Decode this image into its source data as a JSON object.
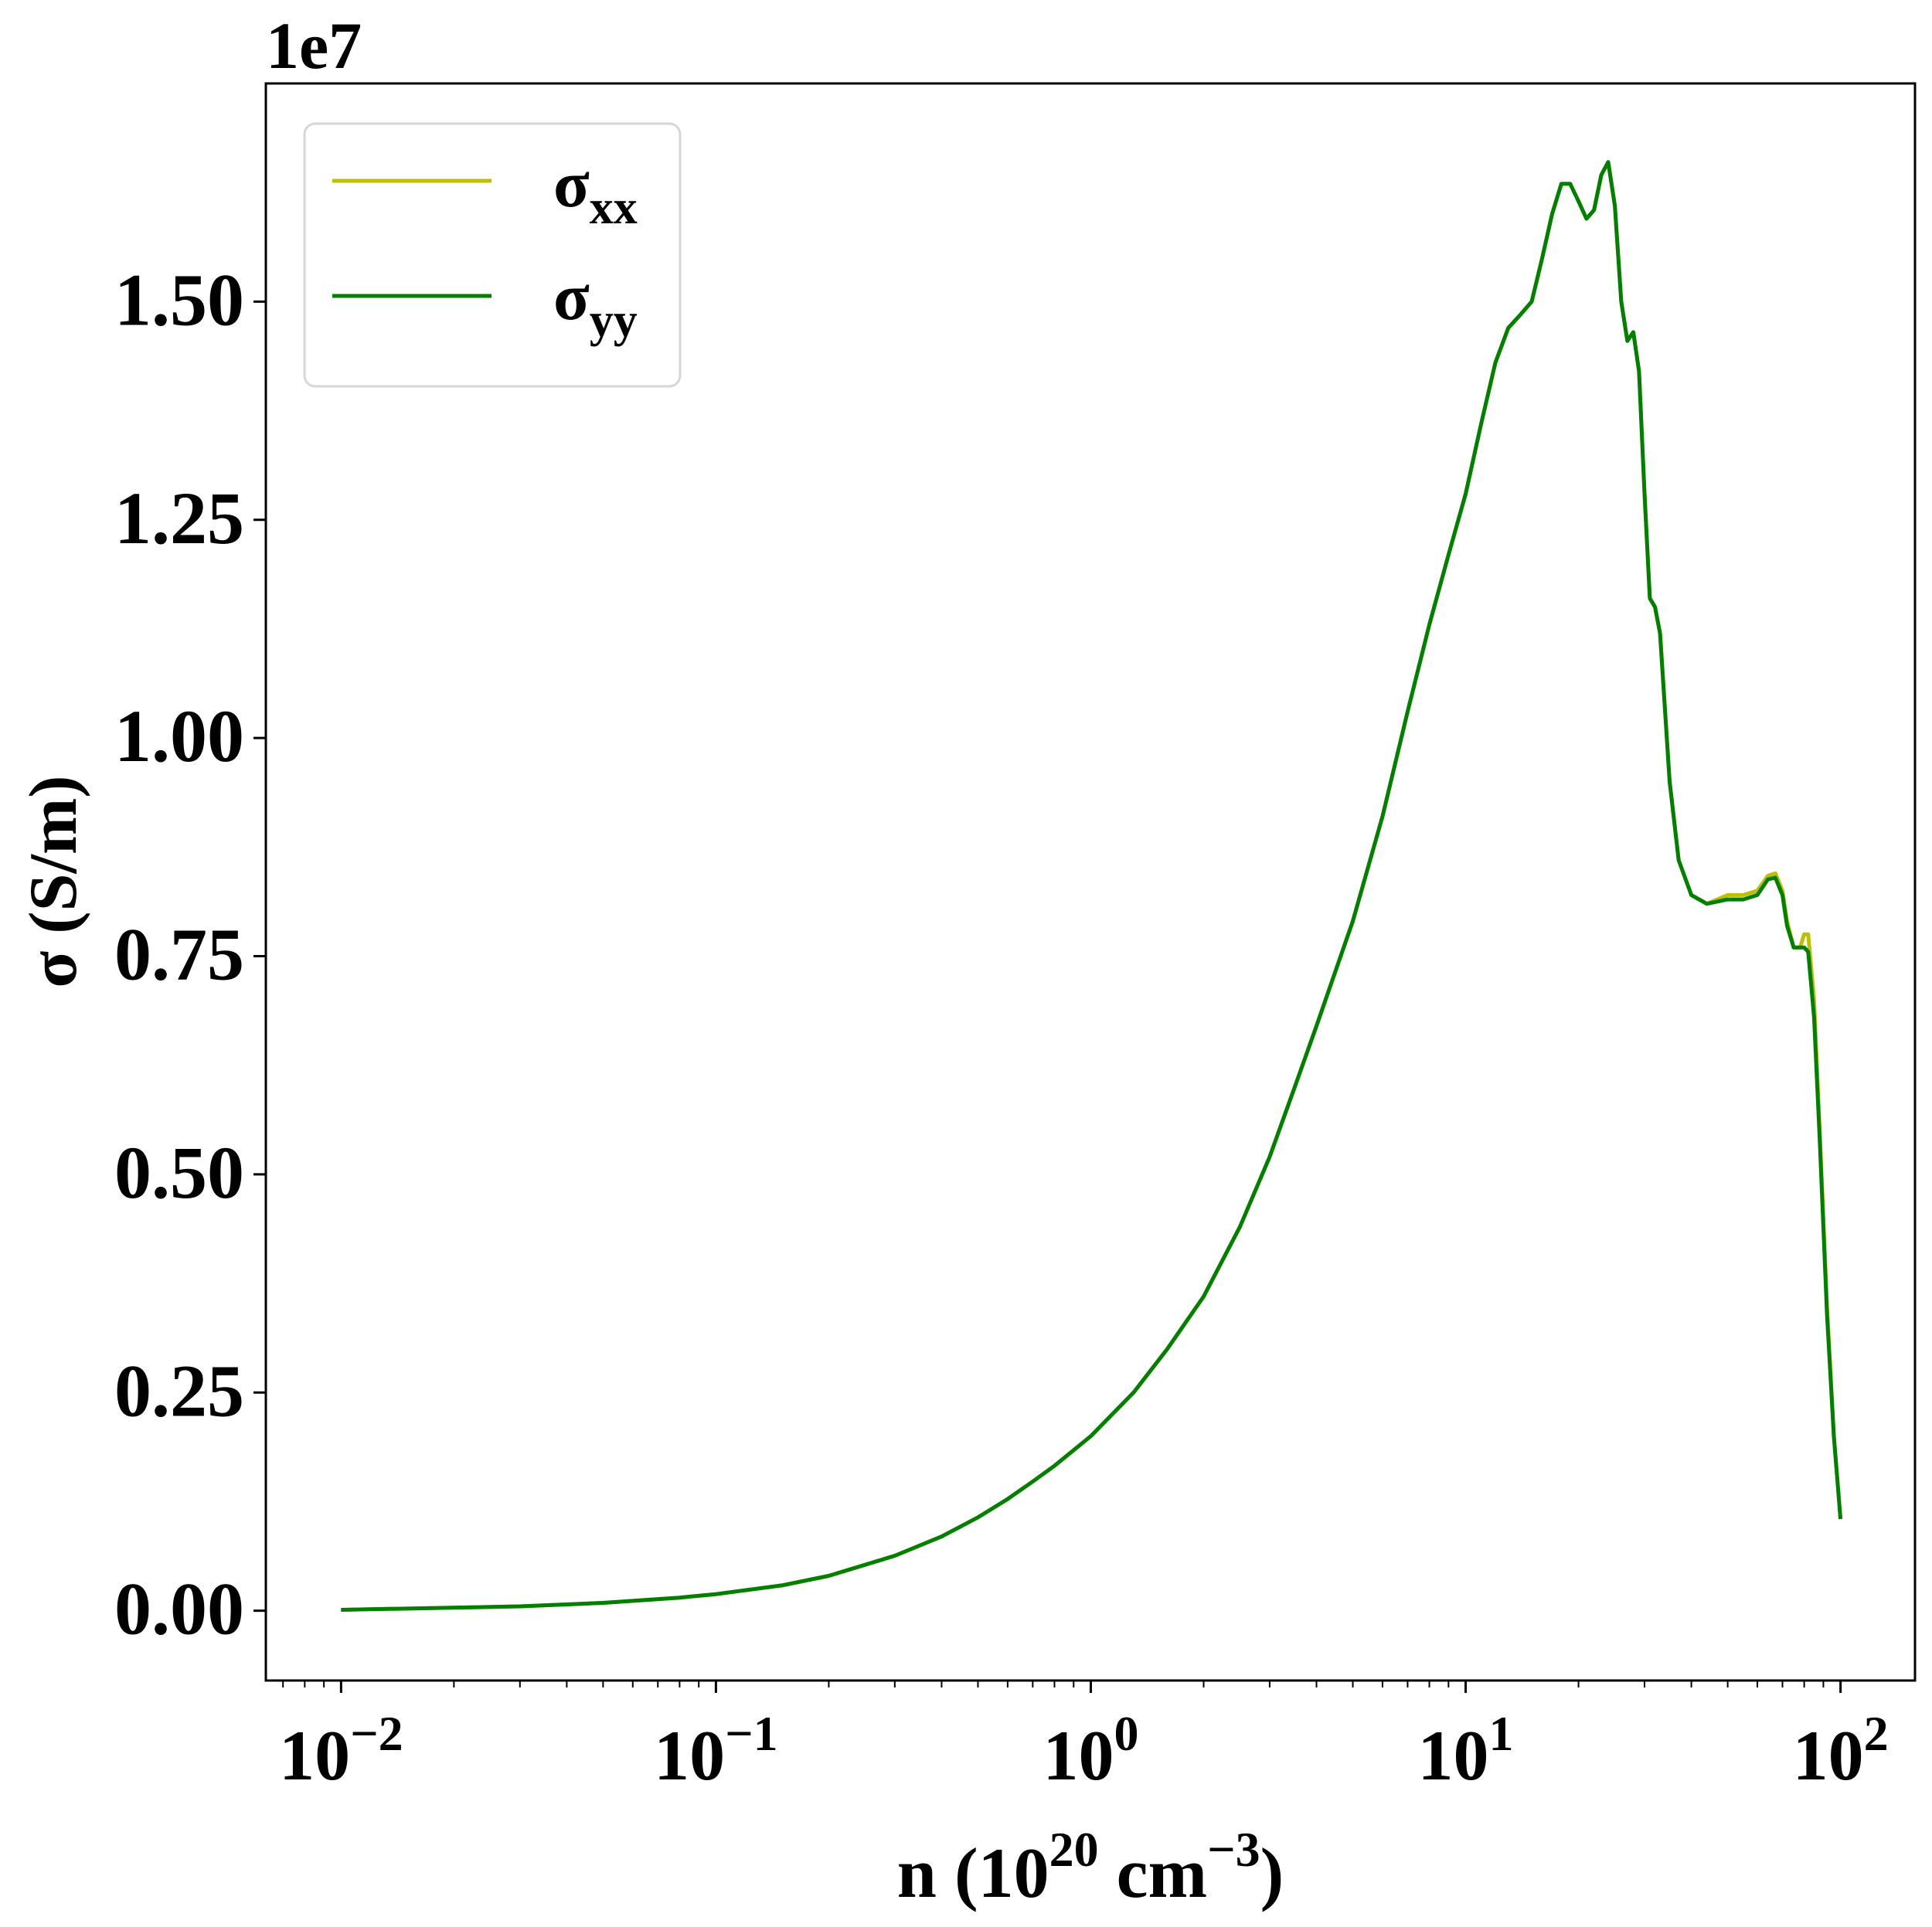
{
  "chart_data": {
    "type": "line",
    "title": "",
    "xlabel": {
      "base": "n (10",
      "sup1": "20",
      "mid": " cm",
      "sup2": "−3",
      "end": ")"
    },
    "ylabel": "σ (S/m)",
    "y_offset_label": "1e7",
    "x_scale": "log",
    "xlim": [
      0.0063,
      158
    ],
    "ylim": [
      -0.08,
      1.75
    ],
    "y_ticks": [
      0.0,
      0.25,
      0.5,
      0.75,
      1.0,
      1.25,
      1.5
    ],
    "y_tick_labels": [
      "0.00",
      "0.25",
      "0.50",
      "0.75",
      "1.00",
      "1.25",
      "1.50"
    ],
    "x_ticks": [
      {
        "value": 0.01,
        "base": "10",
        "exp": "−2"
      },
      {
        "value": 0.1,
        "base": "10",
        "exp": "−1"
      },
      {
        "value": 1,
        "base": "10",
        "exp": "0"
      },
      {
        "value": 10,
        "base": "10",
        "exp": "1"
      },
      {
        "value": 100,
        "base": "10",
        "exp": "2"
      }
    ],
    "grid": false,
    "legend_position": "top-left",
    "series": [
      {
        "name_base": "σ",
        "name_sub": "xx",
        "color": "#bfbf00",
        "points": [
          [
            0.01,
            0.001
          ],
          [
            0.03,
            0.005
          ],
          [
            0.05,
            0.009
          ],
          [
            0.08,
            0.015
          ],
          [
            0.1,
            0.019
          ],
          [
            0.15,
            0.029
          ],
          [
            0.2,
            0.04
          ],
          [
            0.3,
            0.063
          ],
          [
            0.4,
            0.085
          ],
          [
            0.5,
            0.107
          ],
          [
            0.6,
            0.128
          ],
          [
            0.7,
            0.148
          ],
          [
            0.8,
            0.166
          ],
          [
            1.0,
            0.2
          ],
          [
            1.3,
            0.25
          ],
          [
            1.6,
            0.3
          ],
          [
            2.0,
            0.36
          ],
          [
            2.5,
            0.44
          ],
          [
            3.0,
            0.52
          ],
          [
            3.5,
            0.6
          ],
          [
            4.0,
            0.67
          ],
          [
            5.0,
            0.79
          ],
          [
            6.0,
            0.91
          ],
          [
            7.0,
            1.03
          ],
          [
            8.0,
            1.13
          ],
          [
            9.0,
            1.21
          ],
          [
            10.0,
            1.28
          ],
          [
            11.0,
            1.36
          ],
          [
            12.0,
            1.43
          ],
          [
            13.0,
            1.47
          ],
          [
            14.0,
            1.485
          ],
          [
            15.0,
            1.5
          ],
          [
            16.0,
            1.55
          ],
          [
            17.0,
            1.6
          ],
          [
            18.0,
            1.635
          ],
          [
            19.0,
            1.635
          ],
          [
            20.0,
            1.615
          ],
          [
            21.0,
            1.595
          ],
          [
            22.0,
            1.605
          ],
          [
            23.0,
            1.645
          ],
          [
            24.0,
            1.66
          ],
          [
            25.0,
            1.61
          ],
          [
            26.0,
            1.5
          ],
          [
            27.0,
            1.455
          ],
          [
            28.0,
            1.465
          ],
          [
            29.0,
            1.42
          ],
          [
            30.0,
            1.28
          ],
          [
            31.0,
            1.16
          ],
          [
            32.0,
            1.15
          ],
          [
            33.0,
            1.12
          ],
          [
            35.0,
            0.95
          ],
          [
            37.0,
            0.86
          ],
          [
            40.0,
            0.82
          ],
          [
            44.0,
            0.81
          ],
          [
            50.0,
            0.82
          ],
          [
            55.0,
            0.82
          ],
          [
            60.0,
            0.825
          ],
          [
            64.0,
            0.842
          ],
          [
            67.0,
            0.845
          ],
          [
            70.0,
            0.825
          ],
          [
            72.0,
            0.79
          ],
          [
            75.0,
            0.76
          ],
          [
            78.0,
            0.76
          ],
          [
            80.0,
            0.775
          ],
          [
            82.0,
            0.775
          ],
          [
            85.0,
            0.7
          ],
          [
            88.0,
            0.55
          ],
          [
            92.0,
            0.35
          ],
          [
            96.0,
            0.2
          ],
          [
            100.0,
            0.105
          ]
        ]
      },
      {
        "name_base": "σ",
        "name_sub": "yy",
        "color": "#008000",
        "points": [
          [
            0.01,
            0.001
          ],
          [
            0.03,
            0.005
          ],
          [
            0.05,
            0.009
          ],
          [
            0.08,
            0.015
          ],
          [
            0.1,
            0.019
          ],
          [
            0.15,
            0.029
          ],
          [
            0.2,
            0.04
          ],
          [
            0.3,
            0.063
          ],
          [
            0.4,
            0.085
          ],
          [
            0.5,
            0.107
          ],
          [
            0.6,
            0.128
          ],
          [
            0.7,
            0.148
          ],
          [
            0.8,
            0.166
          ],
          [
            1.0,
            0.2
          ],
          [
            1.3,
            0.25
          ],
          [
            1.6,
            0.3
          ],
          [
            2.0,
            0.36
          ],
          [
            2.5,
            0.44
          ],
          [
            3.0,
            0.52
          ],
          [
            3.5,
            0.6
          ],
          [
            4.0,
            0.67
          ],
          [
            5.0,
            0.79
          ],
          [
            6.0,
            0.91
          ],
          [
            7.0,
            1.03
          ],
          [
            8.0,
            1.13
          ],
          [
            9.0,
            1.21
          ],
          [
            10.0,
            1.28
          ],
          [
            11.0,
            1.36
          ],
          [
            12.0,
            1.43
          ],
          [
            13.0,
            1.47
          ],
          [
            14.0,
            1.485
          ],
          [
            15.0,
            1.5
          ],
          [
            16.0,
            1.55
          ],
          [
            17.0,
            1.6
          ],
          [
            18.0,
            1.635
          ],
          [
            19.0,
            1.635
          ],
          [
            20.0,
            1.615
          ],
          [
            21.0,
            1.595
          ],
          [
            22.0,
            1.605
          ],
          [
            23.0,
            1.645
          ],
          [
            24.0,
            1.66
          ],
          [
            25.0,
            1.61
          ],
          [
            26.0,
            1.5
          ],
          [
            27.0,
            1.455
          ],
          [
            28.0,
            1.465
          ],
          [
            29.0,
            1.42
          ],
          [
            30.0,
            1.28
          ],
          [
            31.0,
            1.16
          ],
          [
            32.0,
            1.15
          ],
          [
            33.0,
            1.12
          ],
          [
            35.0,
            0.95
          ],
          [
            37.0,
            0.86
          ],
          [
            40.0,
            0.82
          ],
          [
            44.0,
            0.81
          ],
          [
            50.0,
            0.815
          ],
          [
            55.0,
            0.815
          ],
          [
            60.0,
            0.82
          ],
          [
            64.0,
            0.838
          ],
          [
            67.0,
            0.84
          ],
          [
            70.0,
            0.82
          ],
          [
            72.0,
            0.785
          ],
          [
            75.0,
            0.76
          ],
          [
            78.0,
            0.76
          ],
          [
            80.0,
            0.76
          ],
          [
            82.0,
            0.755
          ],
          [
            85.0,
            0.68
          ],
          [
            88.0,
            0.54
          ],
          [
            92.0,
            0.34
          ],
          [
            96.0,
            0.2
          ],
          [
            100.0,
            0.105
          ]
        ]
      }
    ]
  }
}
